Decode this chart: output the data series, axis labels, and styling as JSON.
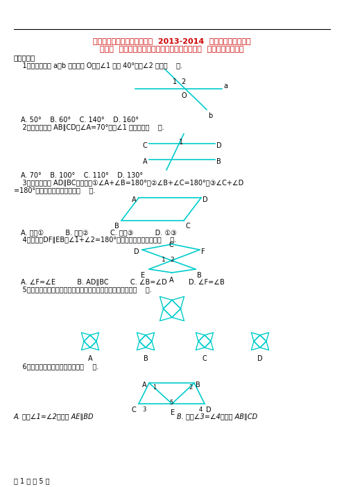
{
  "title_line1": "辽宁省瓦房店市第八初级中学  2013-2014  学年七年级数学下册",
  "title_line2": "第五章  相交线与平行线单元综合测试（含解析）  （新版）新人教版",
  "section": "一、选择题",
  "q1": "    1．如图，直线 a、b 相交于点 O，若∠1 等于 40°，则∠2 等于（    ）.",
  "q1_opts": "A. 50°    B. 60°    C. 140°    D. 160°",
  "q2": "    2．如图，已知 AB∥CD，∠A=70°，则∠1 的度数是（    ）.",
  "q2_opts": "A. 70°    B. 100°    C. 110°    D. 130°",
  "q3a": "    3．如图，如果 AD∥BC，则有：①∠A+∠B=180°，②∠B+∠C=180°，③∠C+∠D",
  "q3b": "=180°，以上结论中正确的是（    ）.",
  "q3_opts": "A. 只有①          B. 只有②          C. 只有③          D. ①③",
  "q4": "    4．如图，DF∥EB，∠1+∠2=180°，则下列结论错误的是（    ）.",
  "q4_opts": "A. ∠F=∠E          B. AD∥BC          C. ∠B=∠D          D. ∠F=∠B",
  "q5": "    5．如图所示，下面的图形中，经过平移能得到右边图形的是（    ）.",
  "q6": "    6．如图，下列判断不正确的是（    ）.",
  "q6_opts_A": "A. 因为∠1=∠2，所以 AE∥BD",
  "q6_opts_B": "B. 因为∠3=∠4，所以 AB∥CD",
  "footer": "第 1 页 共 5 页",
  "cyan": "#00CCCC",
  "red": "#CC0000",
  "black": "#000000",
  "bg": "#FFFFFF"
}
